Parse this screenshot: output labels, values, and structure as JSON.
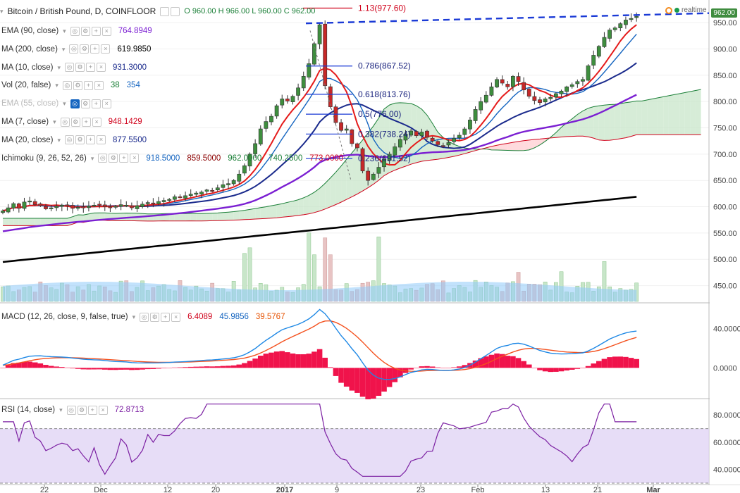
{
  "header": {
    "title": "Bitcoin / British Pound, D, COINFLOOR",
    "ohlc": "O 960.00 H 966.00 L 960.00 C 962.00",
    "price_tag": "962.00",
    "realtime": "realtime"
  },
  "indicators": [
    {
      "name": "EMA (90, close)",
      "values": [
        "764.8949"
      ],
      "colors": [
        "#7b1fd2"
      ]
    },
    {
      "name": "MA (200, close)",
      "values": [
        "619.9850"
      ],
      "colors": [
        "#000000"
      ]
    },
    {
      "name": "MA (10, close)",
      "values": [
        "931.3000"
      ],
      "colors": [
        "#1a2a8c"
      ]
    },
    {
      "name": "Vol (20, false)",
      "values": [
        "38",
        "354"
      ],
      "colors": [
        "#1a7f37",
        "#1565c0"
      ]
    },
    {
      "name": "EMA (55, close)",
      "values": [],
      "colors": [],
      "faded": true
    },
    {
      "name": "MA (7, close)",
      "values": [
        "948.1429"
      ],
      "colors": [
        "#d0021b"
      ]
    },
    {
      "name": "MA (20, close)",
      "values": [
        "877.5500"
      ],
      "colors": [
        "#1a2a8c"
      ]
    },
    {
      "name": "Ichimoku (9, 26, 52, 26)",
      "values": [
        "918.5000",
        "859.5000",
        "962.0000",
        "740.2500",
        "773.0000"
      ],
      "colors": [
        "#1565c0",
        "#8b0000",
        "#1a7f37",
        "#1a7f37",
        "#d0021b"
      ]
    }
  ],
  "macd_label": {
    "name": "MACD (12, 26, close, 9, false, true)",
    "values": [
      "6.4089",
      "45.9856",
      "39.5767"
    ],
    "colors": [
      "#d0021b",
      "#1565c0",
      "#e65100"
    ]
  },
  "rsi_label": {
    "name": "RSI (14, close)",
    "values": [
      "72.8713"
    ],
    "colors": [
      "#7b1fa2"
    ]
  },
  "colors": {
    "up": "#3e8e3e",
    "down": "#c62828",
    "ema90": "#7b1fd2",
    "ma200": "#000000",
    "ma10": "#1a2a8c",
    "ma7": "#e51b1b",
    "kumo_up": "#c8e6c9",
    "kumo_down": "#ffcdd2",
    "kumo_up_line": "#1a7f37",
    "kumo_down_line": "#d0021b",
    "ichi_base": "#1565c0",
    "fib": "#1a3ad6",
    "trend": "#1a3ad6",
    "macd_line": "#1e88e5",
    "signal_line": "#f4511e",
    "hist": "#f0134b",
    "rsi_line": "#7b1fa2",
    "rsi_band": "#e1d5f5",
    "vol_ma": "#90caf9",
    "vol_up": "#c8e6c9",
    "vol_down": "#e8c4c4"
  },
  "chart_data": [
    {
      "type": "candlestick",
      "title": "Bitcoin / British Pound, D, COINFLOOR",
      "x_ticks": [
        "22",
        "Dec",
        "12",
        "20",
        "2017",
        "9",
        "23",
        "Feb",
        "13",
        "21",
        "Mar"
      ],
      "y_ticks": [
        "450.00",
        "500.00",
        "550.00",
        "600.00",
        "650.00",
        "700.00",
        "750.00",
        "800.00",
        "850.00",
        "900.00",
        "950.00"
      ],
      "ylim": [
        420,
        985
      ],
      "close": [
        592,
        598,
        606,
        597,
        609,
        611,
        604,
        602,
        596,
        598,
        601,
        603,
        602,
        597,
        599,
        598,
        601,
        603,
        604,
        600,
        599,
        601,
        604,
        603,
        598,
        602,
        605,
        608,
        606,
        610,
        612,
        614,
        619,
        618,
        621,
        624,
        626,
        628,
        632,
        631,
        636,
        642,
        644,
        650,
        662,
        678,
        700,
        720,
        748,
        762,
        772,
        792,
        805,
        801,
        810,
        826,
        848,
        872,
        910,
        946,
        830,
        790,
        760,
        745,
        748,
        720,
        712,
        668,
        650,
        662,
        675,
        690,
        700,
        714,
        728,
        738,
        744,
        735,
        742,
        732,
        725,
        718,
        716,
        722,
        730,
        736,
        748,
        765,
        785,
        800,
        812,
        828,
        842,
        835,
        828,
        848,
        838,
        822,
        810,
        802,
        798,
        805,
        808,
        815,
        820,
        828,
        832,
        838,
        842,
        868,
        888,
        905,
        922,
        936,
        940,
        948,
        955,
        958,
        962
      ],
      "fib_levels": [
        {
          "label": "1.13(977.60)",
          "value": 977.6
        },
        {
          "label": "0.786(867.52)",
          "value": 867.52
        },
        {
          "label": "0.618(813.76)",
          "value": 813.76
        },
        {
          "label": "0.5(776.00)",
          "value": 776.0
        },
        {
          "label": "0.382(738.24)",
          "value": 738.24
        },
        {
          "label": "0.236(691.52)",
          "value": 691.52
        }
      ]
    },
    {
      "type": "line",
      "title": "MACD (12, 26, close, 9, false, true)",
      "y_ticks": [
        "0.0000",
        "40.0000"
      ],
      "ylim": [
        -30,
        65
      ]
    },
    {
      "type": "line",
      "title": "RSI (14, close)",
      "y_ticks": [
        "40.0000",
        "60.0000",
        "80.0000"
      ],
      "ylim": [
        30,
        92
      ],
      "band": [
        30,
        70
      ]
    }
  ]
}
